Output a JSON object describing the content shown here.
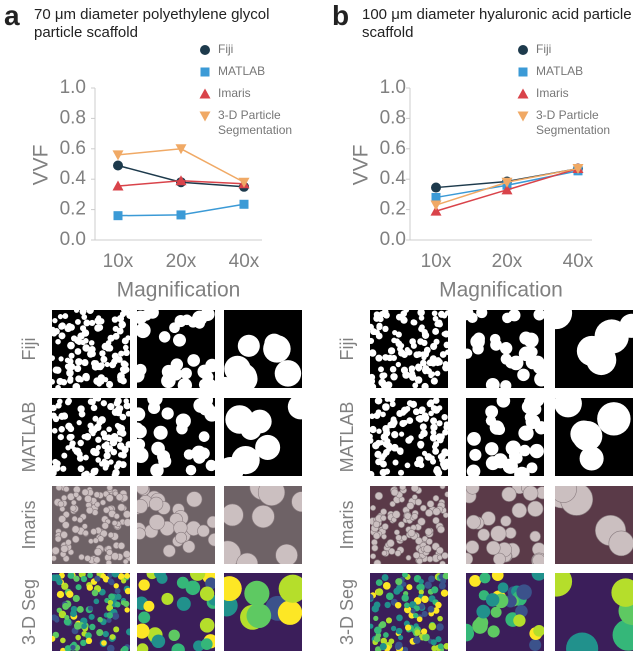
{
  "panel_labels": [
    "a",
    "b"
  ],
  "chart_data": [
    {
      "type": "line",
      "title": "70 μm diameter polyethylene glycol particle scaffold",
      "y_label": "VVF",
      "x_label": "Magnification",
      "categories": [
        "10x",
        "20x",
        "40x"
      ],
      "ylim": [
        0,
        1
      ],
      "yticks": [
        {
          "value": 0,
          "label": "0.0"
        },
        0.2,
        0.4,
        0.6,
        0.8,
        {
          "value": 1,
          "label": "1.0"
        }
      ],
      "grid": false,
      "series": [
        {
          "name": "Fiji",
          "color": "#1d3a4c",
          "marker": "circle",
          "values": [
            0.49,
            0.38,
            0.35
          ]
        },
        {
          "name": "MATLAB",
          "color": "#3b9ad6",
          "marker": "square",
          "values": [
            0.16,
            0.165,
            0.235
          ]
        },
        {
          "name": "Imaris",
          "color": "#d9434a",
          "marker": "triangle",
          "values": [
            0.355,
            0.39,
            0.37
          ]
        },
        {
          "name": "3-D Particle Segmentation",
          "color": "#f0a965",
          "marker": "triangle-down",
          "values": [
            0.56,
            0.6,
            0.38
          ]
        }
      ]
    },
    {
      "type": "line",
      "title": "100 μm diameter hyaluronic acid particle scaffold",
      "y_label": "VVF",
      "x_label": "Magnification",
      "categories": [
        "10x",
        "20x",
        "40x"
      ],
      "ylim": [
        0,
        1
      ],
      "yticks": [
        {
          "value": 0,
          "label": "0.0"
        },
        0.2,
        0.4,
        0.6,
        0.8,
        {
          "value": 1,
          "label": "1.0"
        }
      ],
      "grid": false,
      "series": [
        {
          "name": "Fiji",
          "color": "#1d3a4c",
          "marker": "circle",
          "values": [
            0.345,
            0.385,
            0.47
          ]
        },
        {
          "name": "MATLAB",
          "color": "#3b9ad6",
          "marker": "square",
          "values": [
            0.28,
            0.36,
            0.455
          ]
        },
        {
          "name": "Imaris",
          "color": "#d9434a",
          "marker": "triangle",
          "values": [
            0.19,
            0.33,
            0.47
          ]
        },
        {
          "name": "3-D Particle Segmentation",
          "color": "#f0a965",
          "marker": "triangle-down",
          "values": [
            0.23,
            0.38,
            0.47
          ]
        }
      ]
    }
  ],
  "image_grid": {
    "row_labels": [
      "Fiji",
      "MATLAB",
      "Imaris",
      "3-D Seg"
    ]
  }
}
